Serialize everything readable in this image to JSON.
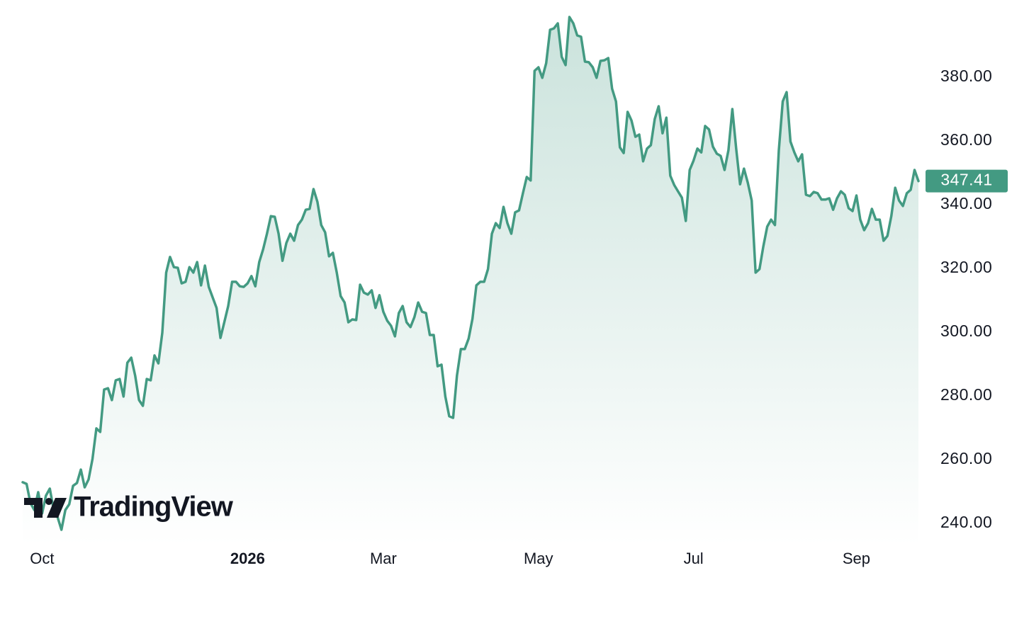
{
  "chart_data": {
    "type": "area",
    "watermark": "TradingView",
    "color": "#439a82",
    "grid": false,
    "ylim": [
      233,
      404
    ],
    "yticks": [
      {
        "value": 240,
        "label": "240.00"
      },
      {
        "value": 260,
        "label": "260.00"
      },
      {
        "value": 280,
        "label": "280.00"
      },
      {
        "value": 300,
        "label": "300.00"
      },
      {
        "value": 320,
        "label": "320.00"
      },
      {
        "value": 340,
        "label": "340.00"
      },
      {
        "value": 360,
        "label": "360.00"
      },
      {
        "value": 380,
        "label": "380.00"
      }
    ],
    "categories": [
      null,
      null,
      null,
      null,
      null,
      "Oct",
      null,
      null,
      null,
      null,
      null,
      null,
      null,
      null,
      null,
      null,
      null,
      null,
      null,
      null,
      null,
      null,
      null,
      null,
      null,
      null,
      null,
      null,
      null,
      null,
      null,
      null,
      null,
      null,
      null,
      null,
      null,
      null,
      null,
      null,
      null,
      null,
      null,
      null,
      null,
      null,
      null,
      null,
      null,
      null,
      null,
      null,
      null,
      null,
      null,
      null,
      null,
      null,
      "2026",
      null,
      null,
      null,
      null,
      null,
      null,
      null,
      null,
      null,
      null,
      null,
      null,
      null,
      null,
      null,
      null,
      null,
      null,
      null,
      null,
      null,
      null,
      null,
      null,
      null,
      null,
      null,
      null,
      null,
      null,
      null,
      null,
      null,
      null,
      "Mar",
      null,
      null,
      null,
      null,
      null,
      null,
      null,
      null,
      null,
      null,
      null,
      null,
      null,
      null,
      null,
      null,
      null,
      null,
      null,
      null,
      null,
      null,
      null,
      null,
      null,
      null,
      null,
      null,
      null,
      null,
      null,
      null,
      null,
      null,
      null,
      null,
      null,
      null,
      null,
      "May",
      null,
      null,
      null,
      null,
      null,
      null,
      null,
      null,
      null,
      null,
      null,
      null,
      null,
      null,
      null,
      null,
      null,
      null,
      null,
      null,
      null,
      null,
      null,
      null,
      null,
      null,
      null,
      null,
      null,
      null,
      null,
      null,
      null,
      null,
      null,
      null,
      null,
      null,
      null,
      "Jul",
      null,
      null,
      null,
      null,
      null,
      null,
      null,
      null,
      null,
      null,
      null,
      null,
      null,
      null,
      null,
      null,
      null,
      null,
      null,
      null,
      null,
      null,
      null,
      null,
      null,
      null,
      null,
      null,
      null,
      null,
      null,
      null,
      null,
      null,
      null,
      null,
      null,
      null,
      null,
      null,
      null,
      "Sep",
      null,
      null,
      null,
      null,
      null,
      null,
      null,
      null,
      null,
      null,
      null,
      null,
      null,
      null,
      null,
      null
    ],
    "values": [
      252.9,
      252.4,
      246.4,
      244.2,
      249.8,
      243.1,
      248.7,
      250.9,
      244.2,
      242.0,
      238.0,
      244.2,
      246.0,
      251.8,
      252.7,
      256.9,
      251.3,
      253.8,
      260.2,
      269.8,
      268.7,
      282.0,
      282.4,
      278.7,
      284.9,
      285.3,
      279.8,
      290.4,
      292.0,
      286.4,
      278.7,
      276.9,
      285.3,
      284.9,
      292.7,
      290.2,
      299.8,
      318.7,
      323.6,
      320.4,
      320.2,
      315.3,
      315.8,
      320.4,
      318.7,
      322.0,
      314.7,
      320.9,
      314.2,
      310.9,
      307.6,
      298.2,
      303.1,
      308.2,
      315.8,
      315.8,
      314.4,
      314.2,
      315.3,
      317.6,
      314.4,
      322.0,
      326.0,
      330.9,
      336.4,
      336.2,
      330.9,
      322.4,
      328.0,
      330.9,
      328.7,
      333.6,
      335.3,
      338.4,
      338.7,
      344.9,
      340.9,
      333.6,
      331.3,
      323.8,
      324.9,
      318.7,
      311.3,
      309.3,
      303.1,
      304.0,
      303.8,
      314.9,
      312.4,
      311.8,
      313.1,
      307.6,
      311.6,
      306.4,
      303.6,
      302.0,
      298.7,
      306.0,
      308.2,
      303.1,
      301.6,
      304.7,
      309.3,
      306.4,
      306.0,
      299.1,
      299.1,
      289.3,
      289.8,
      279.8,
      273.6,
      273.1,
      286.4,
      294.7,
      294.7,
      298.0,
      304.2,
      314.7,
      315.8,
      315.8,
      319.8,
      330.9,
      334.2,
      332.7,
      339.3,
      334.2,
      330.9,
      337.6,
      338.2,
      343.6,
      348.7,
      347.6,
      382.0,
      383.1,
      379.8,
      384.4,
      394.9,
      395.3,
      396.9,
      386.4,
      383.8,
      398.9,
      396.9,
      393.1,
      392.7,
      384.9,
      384.7,
      383.1,
      379.8,
      385.1,
      385.3,
      386.0,
      376.4,
      372.4,
      358.0,
      356.2,
      369.1,
      366.4,
      361.3,
      362.0,
      353.6,
      357.6,
      358.7,
      366.9,
      370.9,
      362.4,
      367.3,
      349.1,
      346.2,
      344.2,
      342.2,
      334.9,
      350.9,
      353.8,
      357.6,
      356.4,
      364.7,
      363.6,
      358.2,
      356.0,
      355.3,
      350.9,
      357.1,
      370.0,
      357.6,
      346.4,
      351.3,
      346.9,
      341.3,
      318.7,
      319.8,
      326.9,
      333.1,
      335.3,
      333.6,
      357.1,
      372.4,
      375.3,
      359.8,
      356.4,
      353.6,
      355.8,
      343.1,
      342.7,
      344.0,
      343.6,
      341.6,
      341.6,
      342.0,
      338.4,
      342.0,
      344.2,
      343.1,
      338.9,
      338.0,
      342.9,
      335.3,
      332.0,
      334.2,
      338.7,
      335.3,
      335.3,
      328.7,
      330.2,
      336.4,
      345.3,
      341.3,
      339.6,
      343.6,
      344.7,
      350.9,
      347.41
    ]
  }
}
